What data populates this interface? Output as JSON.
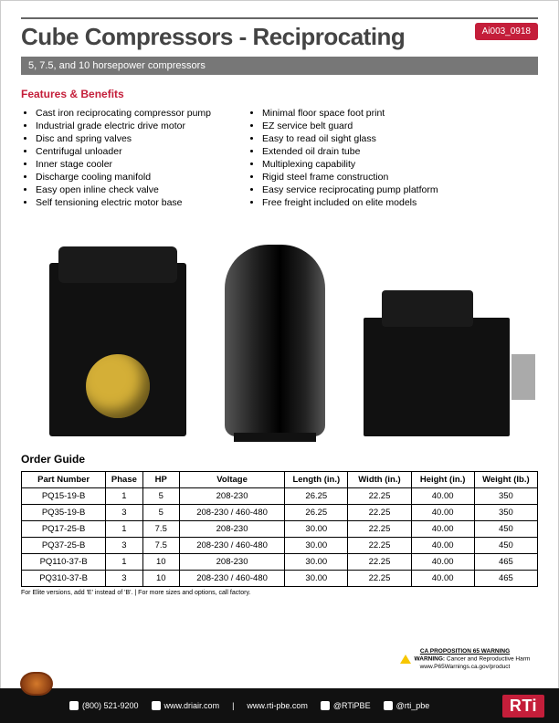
{
  "doc_id": "Ai003_0918",
  "title": "Cube Compressors - Reciprocating",
  "subtitle": "5, 7.5, and 10 horsepower compressors",
  "features_heading": "Features & Benefits",
  "features_left": [
    "Cast iron reciprocating compressor pump",
    "Industrial grade electric drive motor",
    "Disc and spring valves",
    "Centrifugal unloader",
    "Inner stage cooler",
    "Discharge cooling manifold",
    "Easy open inline check valve",
    "Self tensioning electric motor base"
  ],
  "features_right": [
    "Minimal floor space foot print",
    "EZ service belt guard",
    "Easy to read oil sight glass",
    "Extended oil drain tube",
    "Multiplexing capability",
    "Rigid steel frame construction",
    "Easy service reciprocating pump platform",
    "Free freight included on elite models"
  ],
  "order_heading": "Order Guide",
  "table": {
    "columns": [
      "Part Number",
      "Phase",
      "HP",
      "Voltage",
      "Length (in.)",
      "Width (in.)",
      "Height (in.)",
      "Weight (lb.)"
    ],
    "col_widths": [
      "16%",
      "7%",
      "7%",
      "20%",
      "12%",
      "12%",
      "12%",
      "12%"
    ],
    "rows": [
      [
        "PQ15-19-B",
        "1",
        "5",
        "208-230",
        "26.25",
        "22.25",
        "40.00",
        "350"
      ],
      [
        "PQ35-19-B",
        "3",
        "5",
        "208-230 / 460-480",
        "26.25",
        "22.25",
        "40.00",
        "350"
      ],
      [
        "PQ17-25-B",
        "1",
        "7.5",
        "208-230",
        "30.00",
        "22.25",
        "40.00",
        "450"
      ],
      [
        "PQ37-25-B",
        "3",
        "7.5",
        "208-230 / 460-480",
        "30.00",
        "22.25",
        "40.00",
        "450"
      ],
      [
        "PQ110-37-B",
        "1",
        "10",
        "208-230",
        "30.00",
        "22.25",
        "40.00",
        "465"
      ],
      [
        "PQ310-37-B",
        "3",
        "10",
        "208-230 / 460-480",
        "30.00",
        "22.25",
        "40.00",
        "465"
      ]
    ]
  },
  "footnote": "For Elite versions, add 'E' instead of 'B'.  |  For more sizes and options, call factory.",
  "prop65": {
    "heading": "CA PROPOSITION 65 WARNING",
    "warn_label": "WARNING:",
    "warn_body": "Cancer and Reproductive Harm",
    "url": "www.P65Warnings.ca.gov/product"
  },
  "footer": {
    "phone": "(800) 521-9200",
    "site1": "www.driair.com",
    "site2": "www.rti-pbe.com",
    "social1": "@RTiPBE",
    "social2": "@rti_pbe",
    "rti": "RTi"
  },
  "colors": {
    "accent_red": "#c41e3a",
    "band_gray": "#777777",
    "title_gray": "#444444",
    "gold": "#d4af37",
    "footer_bg": "#111111"
  }
}
